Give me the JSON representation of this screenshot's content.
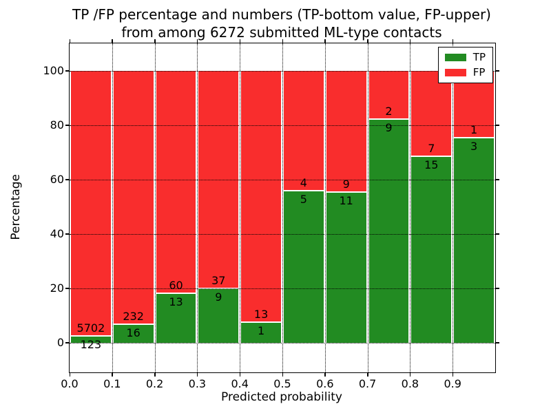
{
  "title": {
    "line1": "TP /FP percentage and numbers (TP-bottom value, FP-upper)",
    "line2": "from among 6272 submitted ML-type contacts"
  },
  "colors": {
    "tp": "#228b22",
    "fp": "#f92d2d",
    "grid": "#000000",
    "axes_border": "#000000"
  },
  "chart_data": {
    "type": "bar",
    "stacked": true,
    "normalized_to_percent": true,
    "title": "TP /FP percentage and numbers (TP-bottom value, FP-upper) from among 6272 submitted ML-type contacts",
    "xlabel": "Predicted probability",
    "ylabel": "Percentage",
    "bin_edges": [
      0.0,
      0.1,
      0.2,
      0.3,
      0.4,
      0.5,
      0.6,
      0.7,
      0.8,
      0.9,
      1.0
    ],
    "categories": [
      "0.0-0.1",
      "0.1-0.2",
      "0.2-0.3",
      "0.3-0.4",
      "0.4-0.5",
      "0.5-0.6",
      "0.6-0.7",
      "0.7-0.8",
      "0.8-0.9",
      "0.9-1.0"
    ],
    "series": [
      {
        "name": "TP",
        "color": "#228b22",
        "counts": [
          123,
          16,
          13,
          9,
          1,
          5,
          11,
          9,
          15,
          3
        ]
      },
      {
        "name": "FP",
        "color": "#f92d2d",
        "counts": [
          5702,
          232,
          60,
          37,
          13,
          4,
          9,
          2,
          7,
          1
        ]
      }
    ],
    "bar_label_convention": "TP count below segment boundary, FP count above segment boundary",
    "xticks": [
      "0.0",
      "0.1",
      "0.2",
      "0.3",
      "0.4",
      "0.5",
      "0.6",
      "0.7",
      "0.8",
      "0.9"
    ],
    "yticks": [
      0,
      20,
      40,
      60,
      80,
      100
    ],
    "xlim": [
      0.0,
      1.0
    ],
    "ylim": [
      -11,
      110
    ],
    "grid": "dotted black, horizontal lines above bars, vertical lines behind bars",
    "legend": {
      "position": "upper right",
      "entries": [
        {
          "label": "TP",
          "color": "#228b22"
        },
        {
          "label": "FP",
          "color": "#f92d2d"
        }
      ]
    }
  }
}
